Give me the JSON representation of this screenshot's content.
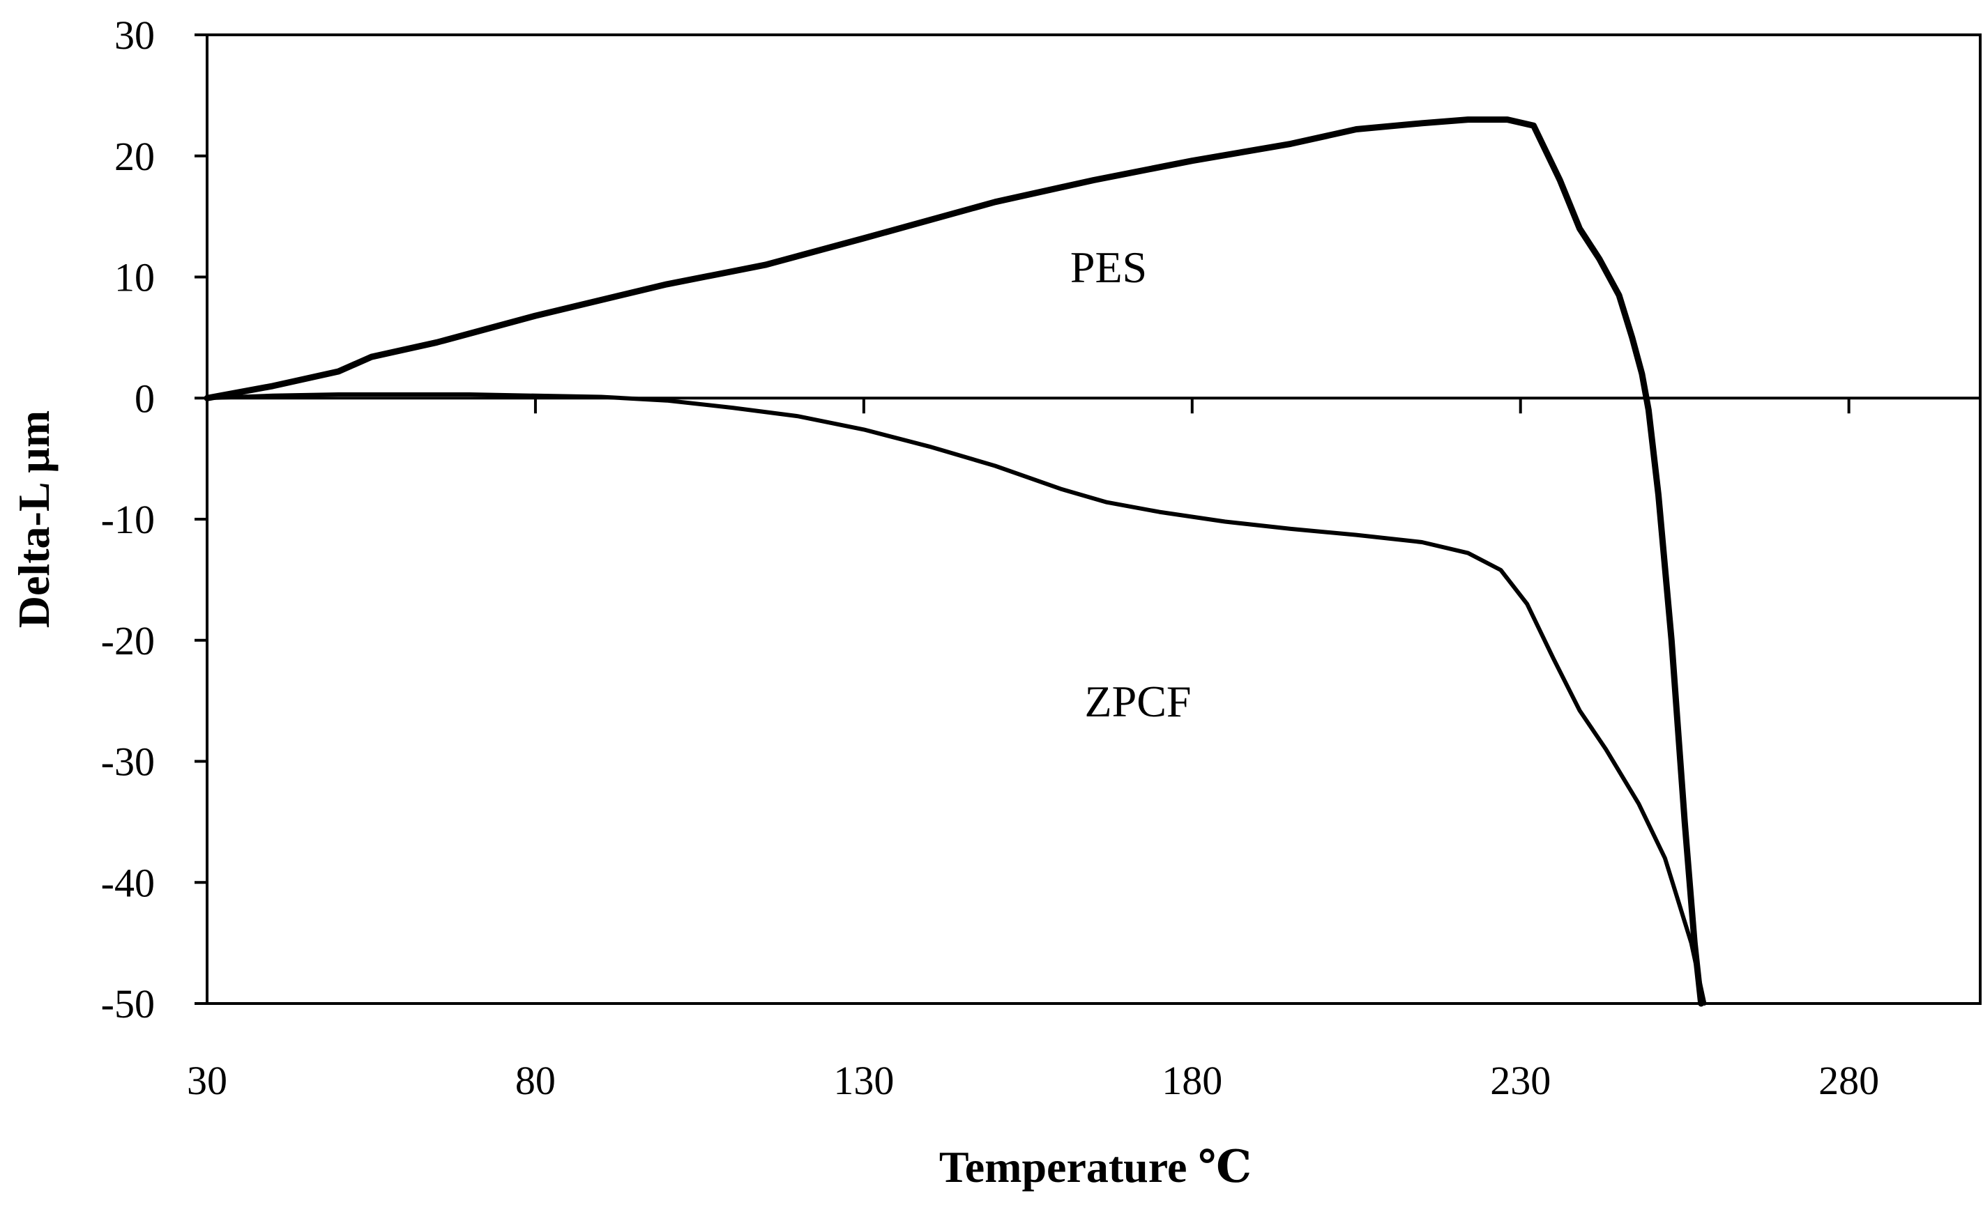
{
  "chart_data": {
    "type": "line",
    "title": "",
    "xlabel": "Temperature ℃",
    "ylabel": "Delta-L µm",
    "xlim": [
      30,
      300
    ],
    "ylim": [
      -50,
      30
    ],
    "x_ticks": [
      30,
      80,
      130,
      180,
      230,
      280
    ],
    "y_ticks": [
      30,
      20,
      10,
      0,
      -10,
      -20,
      -30,
      -40,
      -50
    ],
    "x_tick_labels": [
      "30",
      "80",
      "130",
      "180",
      "230",
      "280"
    ],
    "y_tick_labels": [
      "30",
      "20",
      "10",
      "0",
      "-10",
      "-20",
      "-30",
      "-40",
      "-50"
    ],
    "grid": false,
    "legend": "none",
    "series": [
      {
        "name": "PES",
        "label": "PES",
        "weight": "thick",
        "points": [
          [
            30,
            0
          ],
          [
            40,
            1.0
          ],
          [
            50,
            2.2
          ],
          [
            55,
            3.4
          ],
          [
            65,
            4.6
          ],
          [
            80,
            6.8
          ],
          [
            100,
            9.4
          ],
          [
            115,
            11.0
          ],
          [
            130,
            13.2
          ],
          [
            150,
            16.2
          ],
          [
            165,
            18.0
          ],
          [
            180,
            19.6
          ],
          [
            195,
            21.0
          ],
          [
            205,
            22.2
          ],
          [
            215,
            22.7
          ],
          [
            222,
            23.0
          ],
          [
            228,
            23.0
          ],
          [
            232,
            22.5
          ],
          [
            236,
            18.0
          ],
          [
            239,
            14.0
          ],
          [
            242,
            11.5
          ],
          [
            245,
            8.5
          ],
          [
            247,
            5.0
          ],
          [
            248.5,
            2.0
          ],
          [
            249.5,
            -1.0
          ],
          [
            251,
            -8.0
          ],
          [
            253,
            -20.0
          ],
          [
            255,
            -35.0
          ],
          [
            256.5,
            -45.0
          ],
          [
            257.5,
            -50.0
          ]
        ]
      },
      {
        "name": "ZPCF",
        "label": "ZPCF",
        "weight": "thin",
        "points": [
          [
            30,
            0
          ],
          [
            40,
            0.2
          ],
          [
            50,
            0.3
          ],
          [
            60,
            0.3
          ],
          [
            70,
            0.3
          ],
          [
            80,
            0.2
          ],
          [
            90,
            0.1
          ],
          [
            100,
            -0.2
          ],
          [
            110,
            -0.8
          ],
          [
            120,
            -1.5
          ],
          [
            130,
            -2.6
          ],
          [
            140,
            -4.0
          ],
          [
            150,
            -5.6
          ],
          [
            160,
            -7.5
          ],
          [
            167,
            -8.6
          ],
          [
            175,
            -9.4
          ],
          [
            185,
            -10.2
          ],
          [
            195,
            -10.8
          ],
          [
            205,
            -11.3
          ],
          [
            215,
            -11.9
          ],
          [
            222,
            -12.8
          ],
          [
            227,
            -14.2
          ],
          [
            231,
            -17.0
          ],
          [
            235,
            -21.5
          ],
          [
            239,
            -25.8
          ],
          [
            243,
            -29.0
          ],
          [
            248,
            -33.5
          ],
          [
            252,
            -38.0
          ],
          [
            256,
            -45.0
          ],
          [
            258,
            -50.0
          ]
        ]
      }
    ]
  }
}
